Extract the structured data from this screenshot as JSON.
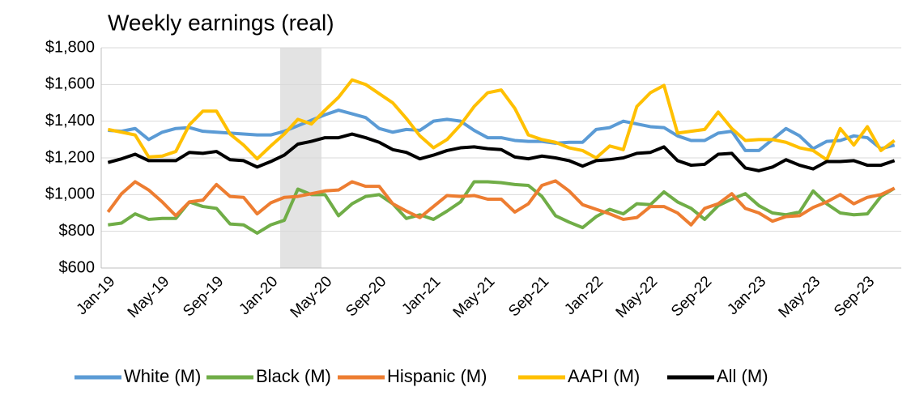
{
  "chart_data": {
    "type": "line",
    "title": "Weekly earnings (real)",
    "categories": [
      "Jan-19",
      null,
      null,
      null,
      "May-19",
      null,
      null,
      null,
      "Sep-19",
      null,
      null,
      null,
      "Jan-20",
      null,
      null,
      null,
      "May-20",
      null,
      null,
      null,
      "Sep-20",
      null,
      null,
      null,
      "Jan-21",
      null,
      null,
      null,
      "May-21",
      null,
      null,
      null,
      "Sep-21",
      null,
      null,
      null,
      "Jan-22",
      null,
      null,
      null,
      "May-22",
      null,
      null,
      null,
      "Sep-22",
      null,
      null,
      null,
      "Jan-23",
      null,
      null,
      null,
      "May-23",
      null,
      null,
      null,
      "Sep-23",
      null,
      null
    ],
    "series": [
      {
        "name": "White (M)",
        "color": "#5b9bd5",
        "values": [
          1350,
          1345,
          1360,
          1300,
          1340,
          1360,
          1365,
          1345,
          1340,
          1335,
          1330,
          1325,
          1325,
          1345,
          1375,
          1405,
          1435,
          1460,
          1440,
          1420,
          1360,
          1340,
          1355,
          1350,
          1400,
          1410,
          1400,
          1350,
          1310,
          1310,
          1295,
          1290,
          1290,
          1280,
          1285,
          1285,
          1355,
          1365,
          1400,
          1385,
          1370,
          1365,
          1320,
          1295,
          1295,
          1335,
          1345,
          1240,
          1240,
          1300,
          1360,
          1320,
          1250,
          1290,
          1295,
          1320,
          1310,
          1250,
          1270
        ]
      },
      {
        "name": "Black (M)",
        "color": "#70ad47",
        "values": [
          835,
          845,
          895,
          865,
          870,
          870,
          960,
          935,
          925,
          840,
          835,
          790,
          835,
          860,
          1030,
          1000,
          1000,
          885,
          950,
          990,
          1000,
          950,
          870,
          890,
          865,
          910,
          960,
          1070,
          1070,
          1065,
          1055,
          1050,
          990,
          885,
          850,
          820,
          880,
          920,
          895,
          950,
          945,
          1015,
          960,
          925,
          865,
          940,
          975,
          1005,
          940,
          900,
          890,
          905,
          1020,
          950,
          900,
          890,
          895,
          990,
          1035
        ]
      },
      {
        "name": "Hispanic (M)",
        "color": "#ed7d31",
        "values": [
          905,
          1005,
          1070,
          1025,
          960,
          885,
          960,
          970,
          1055,
          990,
          985,
          895,
          955,
          985,
          990,
          1005,
          1020,
          1025,
          1070,
          1045,
          1045,
          950,
          910,
          875,
          935,
          995,
          990,
          995,
          975,
          975,
          905,
          950,
          1050,
          1075,
          1020,
          945,
          920,
          895,
          865,
          875,
          935,
          935,
          900,
          835,
          925,
          950,
          1005,
          925,
          900,
          855,
          880,
          885,
          930,
          960,
          1000,
          950,
          985,
          1000,
          1035
        ]
      },
      {
        "name": "AAPI (M)",
        "color": "#ffc000",
        "values": [
          1355,
          1340,
          1325,
          1205,
          1210,
          1235,
          1380,
          1455,
          1455,
          1330,
          1270,
          1195,
          1265,
          1330,
          1410,
          1385,
          1460,
          1530,
          1625,
          1600,
          1550,
          1500,
          1415,
          1320,
          1255,
          1300,
          1380,
          1480,
          1555,
          1570,
          1470,
          1325,
          1300,
          1285,
          1255,
          1240,
          1200,
          1265,
          1245,
          1480,
          1555,
          1595,
          1335,
          1345,
          1355,
          1450,
          1360,
          1295,
          1300,
          1300,
          1285,
          1255,
          1240,
          1190,
          1360,
          1270,
          1370,
          1240,
          1295
        ]
      },
      {
        "name": "All (M)",
        "color": "#000000",
        "values": [
          1175,
          1195,
          1220,
          1185,
          1185,
          1185,
          1230,
          1225,
          1235,
          1190,
          1185,
          1150,
          1180,
          1215,
          1275,
          1290,
          1310,
          1310,
          1330,
          1310,
          1285,
          1245,
          1230,
          1195,
          1215,
          1240,
          1255,
          1260,
          1250,
          1245,
          1205,
          1195,
          1210,
          1200,
          1185,
          1155,
          1185,
          1190,
          1200,
          1225,
          1230,
          1260,
          1185,
          1160,
          1165,
          1220,
          1225,
          1145,
          1130,
          1150,
          1190,
          1160,
          1140,
          1180,
          1180,
          1185,
          1160,
          1160,
          1185
        ]
      }
    ],
    "ylim": [
      600,
      1800
    ],
    "yticks": [
      {
        "value": 600,
        "label": "$600"
      },
      {
        "value": 800,
        "label": "$800"
      },
      {
        "value": 1000,
        "label": "$1,000"
      },
      {
        "value": 1200,
        "label": "$1,200"
      },
      {
        "value": 1400,
        "label": "$1,400"
      },
      {
        "value": 1600,
        "label": "$1,600"
      },
      {
        "value": 1800,
        "label": "$1,800"
      }
    ],
    "grid": true,
    "legend": "bottom"
  }
}
